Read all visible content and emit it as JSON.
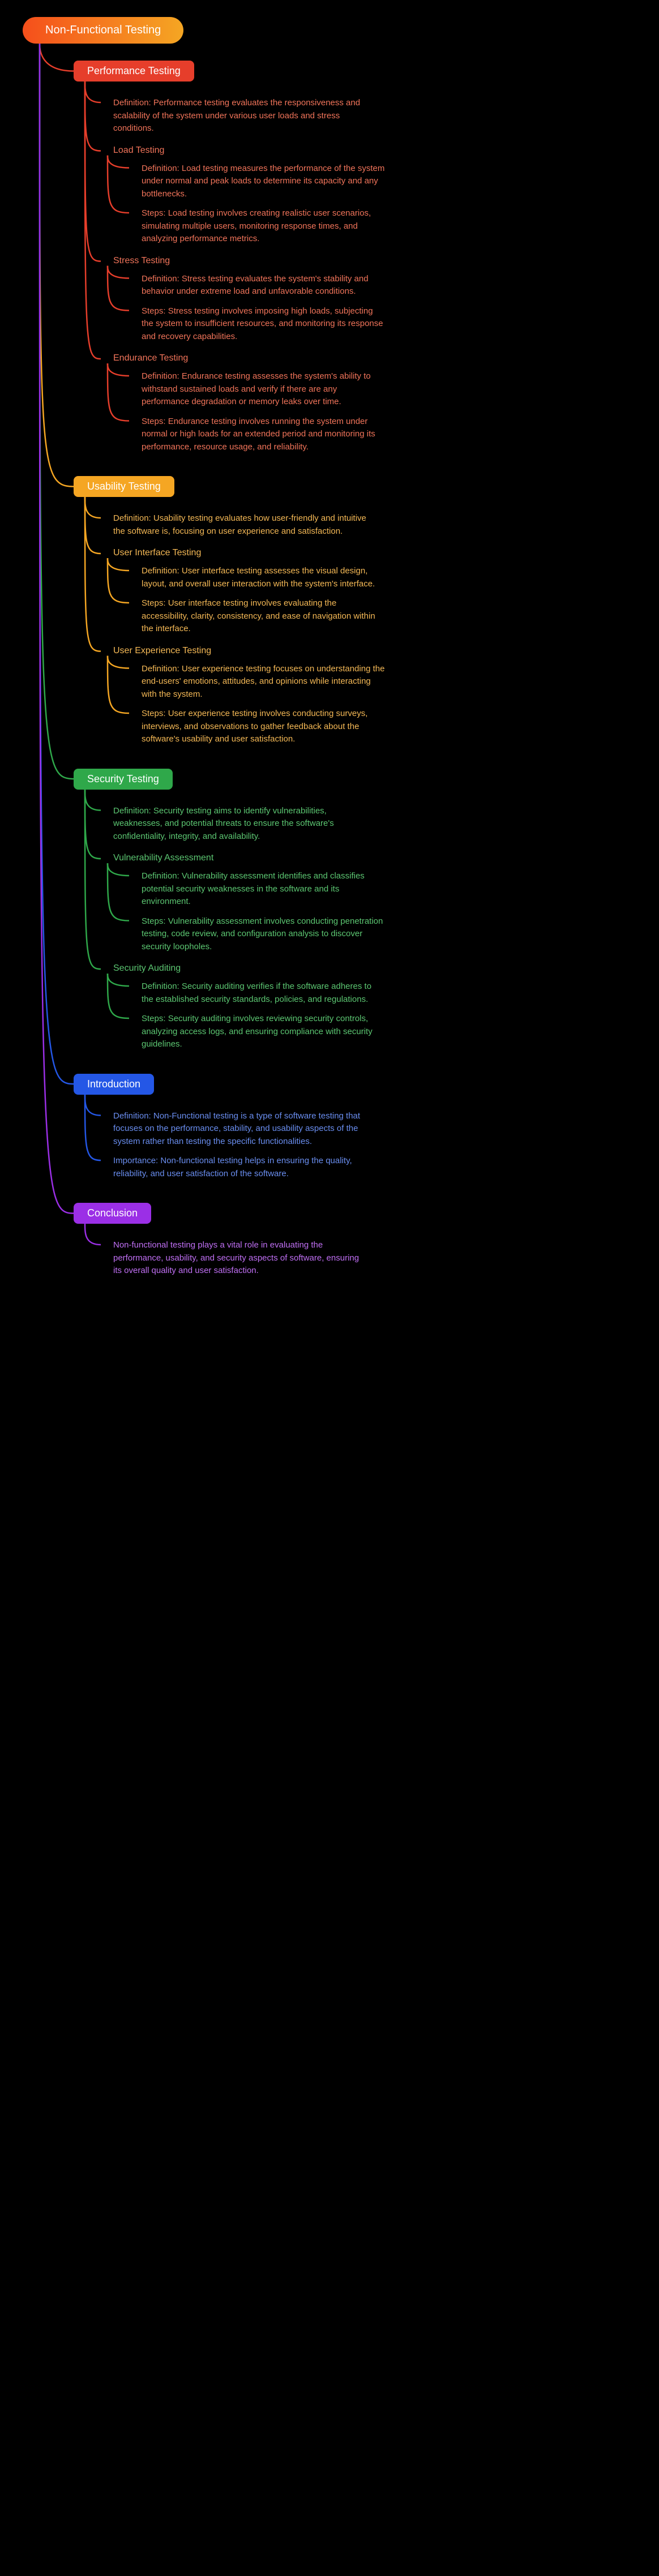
{
  "root": {
    "label": "Non-Functional Testing",
    "gradient": [
      "#f54f1b",
      "#f5a623"
    ]
  },
  "branches": [
    {
      "id": "perf",
      "label": "Performance Testing",
      "color": "#e63e2b",
      "textColor": "#f1745a",
      "definition": "Definition: Performance testing evaluates the responsiveness and scalability of the system under various user loads and stress conditions.",
      "subs": [
        {
          "title": "Load Testing",
          "items": [
            "Definition: Load testing measures the performance of the system under normal and peak loads to determine its capacity and any bottlenecks.",
            "Steps: Load testing involves creating realistic user scenarios, simulating multiple users, monitoring response times, and analyzing performance metrics."
          ]
        },
        {
          "title": "Stress Testing",
          "items": [
            "Definition: Stress testing evaluates the system's stability and behavior under extreme load and unfavorable conditions.",
            "Steps: Stress testing involves imposing high loads, subjecting the system to insufficient resources, and monitoring its response and recovery capabilities."
          ]
        },
        {
          "title": "Endurance Testing",
          "items": [
            "Definition: Endurance testing assesses the system's ability to withstand sustained loads and verify if there are any performance degradation or memory leaks over time.",
            "Steps: Endurance testing involves running the system under normal or high loads for an extended period and monitoring its performance, resource usage, and reliability."
          ]
        }
      ]
    },
    {
      "id": "usab",
      "label": "Usability Testing",
      "color": "#f5a623",
      "textColor": "#f5b956",
      "definition": "Definition: Usability testing evaluates how user-friendly and intuitive the software is, focusing on user experience and satisfaction.",
      "subs": [
        {
          "title": "User Interface Testing",
          "items": [
            "Definition: User interface testing assesses the visual design, layout, and overall user interaction with the system's interface.",
            "Steps: User interface testing involves evaluating the accessibility, clarity, consistency, and ease of navigation within the interface."
          ]
        },
        {
          "title": "User Experience Testing",
          "items": [
            "Definition: User experience testing focuses on understanding the end-users' emotions, attitudes, and opinions while interacting with the system.",
            "Steps: User experience testing involves conducting surveys, interviews, and observations to gather feedback about the software's usability and user satisfaction."
          ]
        }
      ]
    },
    {
      "id": "sec",
      "label": "Security Testing",
      "color": "#2fa84a",
      "textColor": "#5cc772",
      "definition": "Definition: Security testing aims to identify vulnerabilities, weaknesses, and potential threats to ensure the software's confidentiality, integrity, and availability.",
      "subs": [
        {
          "title": "Vulnerability Assessment",
          "items": [
            "Definition: Vulnerability assessment identifies and classifies potential security weaknesses in the software and its environment.",
            "Steps: Vulnerability assessment involves conducting penetration testing, code review, and configuration analysis to discover security loopholes."
          ]
        },
        {
          "title": "Security Auditing",
          "items": [
            "Definition: Security auditing verifies if the software adheres to the established security standards, policies, and regulations.",
            "Steps: Security auditing involves reviewing security controls, analyzing access logs, and ensuring compliance with security guidelines."
          ]
        }
      ]
    },
    {
      "id": "intro",
      "label": "Introduction",
      "color": "#2457e6",
      "textColor": "#6a8ef0",
      "definition": null,
      "leafs": [
        "Definition: Non-Functional testing is a type of software testing that focuses on the performance, stability, and usability aspects of the system rather than testing the specific functionalities.",
        "Importance: Non-functional testing helps in ensuring the quality, reliability, and user satisfaction of the software."
      ],
      "subs": []
    },
    {
      "id": "conc",
      "label": "Conclusion",
      "color": "#9b2fe6",
      "textColor": "#c170f5",
      "definition": null,
      "leafs": [
        "Non-functional testing plays a vital role in evaluating the performance, usability, and security aspects of software, ensuring its overall quality and user satisfaction."
      ],
      "subs": []
    }
  ]
}
